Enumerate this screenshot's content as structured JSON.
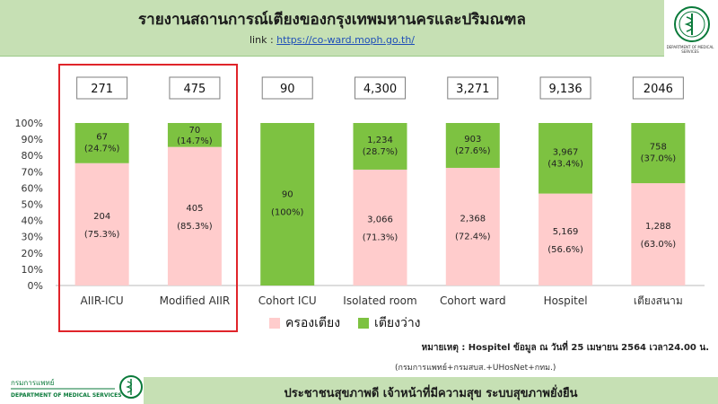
{
  "header": {
    "title": "รายงานสถานการณ์เตียงของกรุงเทพมหานครและปริมณฑล",
    "link_label": "link :",
    "link_url": "https://co-ward.moph.go.th/"
  },
  "logos": {
    "moph_caption": "DEPARTMENT OF MEDICAL SERVICES",
    "dms_thai": "กรมการแพทย์",
    "dms_english": "DEPARTMENT OF MEDICAL SERVICES"
  },
  "legend": {
    "occupied": "ครองเตียง",
    "available": "เตียงว่าง"
  },
  "note": "หมายเหตุ : Hospitel ข้อมูล ณ วันที่ 25 เมษายน 2564 เวลา24.00 น.",
  "source": "(กรมการแพทย์+กรมสบส.+UHosNet+กทม.)",
  "footer": "ประชาชนสุขภาพดี เจ้าหน้าที่มีความสุข ระบบสุขภาพยั่งยืน",
  "colors": {
    "occupied": "#ffcccc",
    "available": "#7dc241",
    "header_band": "#c6e0b4",
    "highlight_box": "#e0242a"
  },
  "chart_data": {
    "type": "bar",
    "stacked": "percent",
    "categories": [
      "AIIR-ICU",
      "Modified AIIR",
      "Cohort ICU",
      "Isolated room",
      "Cohort ward",
      "Hospitel",
      "เตียงสนาม"
    ],
    "totals": [
      "271",
      "475",
      "90",
      "4,300",
      "3,271",
      "9,136",
      "2046"
    ],
    "series": [
      {
        "name": "ครองเตียง",
        "values": [
          204,
          405,
          0,
          3066,
          2368,
          5169,
          1288
        ],
        "value_labels": [
          "204",
          "405",
          "",
          "3,066",
          "2,368",
          "5,169",
          "1,288"
        ],
        "percent_labels": [
          "(75.3%)",
          "(85.3%)",
          "",
          "(71.3%)",
          "(72.4%)",
          "(56.6%)",
          "(63.0%)"
        ],
        "color": "#ffcccc"
      },
      {
        "name": "เตียงว่าง",
        "values": [
          67,
          70,
          90,
          1234,
          903,
          3967,
          758
        ],
        "value_labels": [
          "67",
          "70",
          "90",
          "1,234",
          "903",
          "3,967",
          "758"
        ],
        "percent_labels": [
          "(24.7%)",
          "(14.7%)",
          "(100%)",
          "(28.7%)",
          "(27.6%)",
          "(43.4%)",
          "(37.0%)"
        ],
        "color": "#7dc241"
      }
    ],
    "y_ticks": [
      "0%",
      "10%",
      "20%",
      "30%",
      "40%",
      "50%",
      "60%",
      "70%",
      "80%",
      "90%",
      "100%"
    ],
    "ylim": [
      0,
      100
    ],
    "grid": false,
    "legend_position": "bottom"
  }
}
